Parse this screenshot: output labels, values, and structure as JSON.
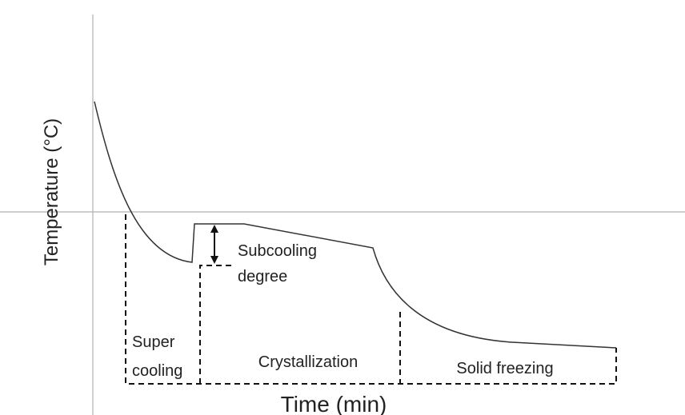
{
  "axes": {
    "y_label": "Temperature (°C)",
    "x_label": "Time (min)"
  },
  "annotation": {
    "line1": "Subcooling",
    "line2": "degree"
  },
  "regions": [
    {
      "line1": "Super",
      "line2": "cooling"
    },
    {
      "label": "Crystallization"
    },
    {
      "label": "Solid freezing"
    }
  ]
}
